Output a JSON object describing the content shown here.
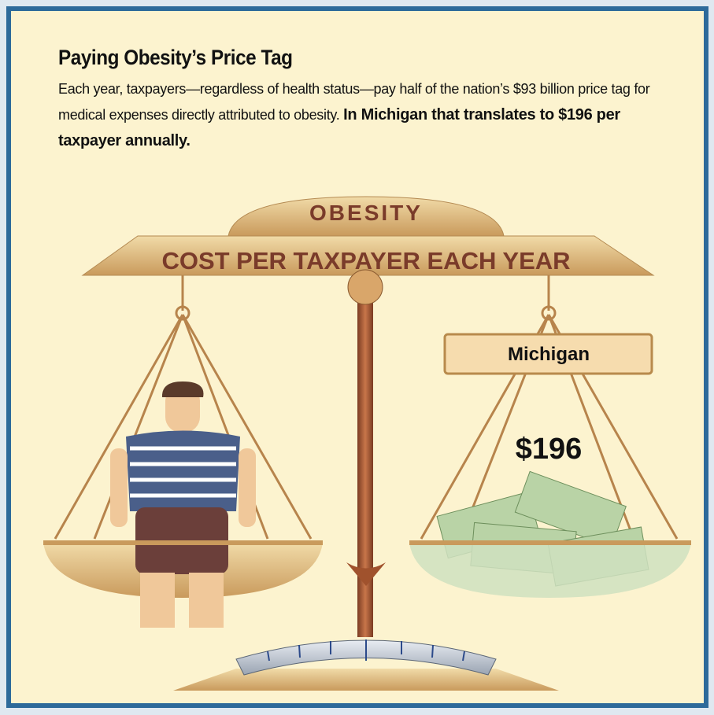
{
  "header": {
    "title": "Paying Obesity’s Price Tag",
    "body": "Each year, taxpayers—regardless of health status—pay half of the nation’s $93 billion price tag for medical expenses directly attributed to obesity.",
    "body_bold": "In Michigan that translates to $196 per taxpayer annually."
  },
  "scale": {
    "arch_label": "OBESITY",
    "beam_label": "COST PER TAXPAYER EACH YEAR",
    "state": "Michigan",
    "amount": "$196"
  }
}
